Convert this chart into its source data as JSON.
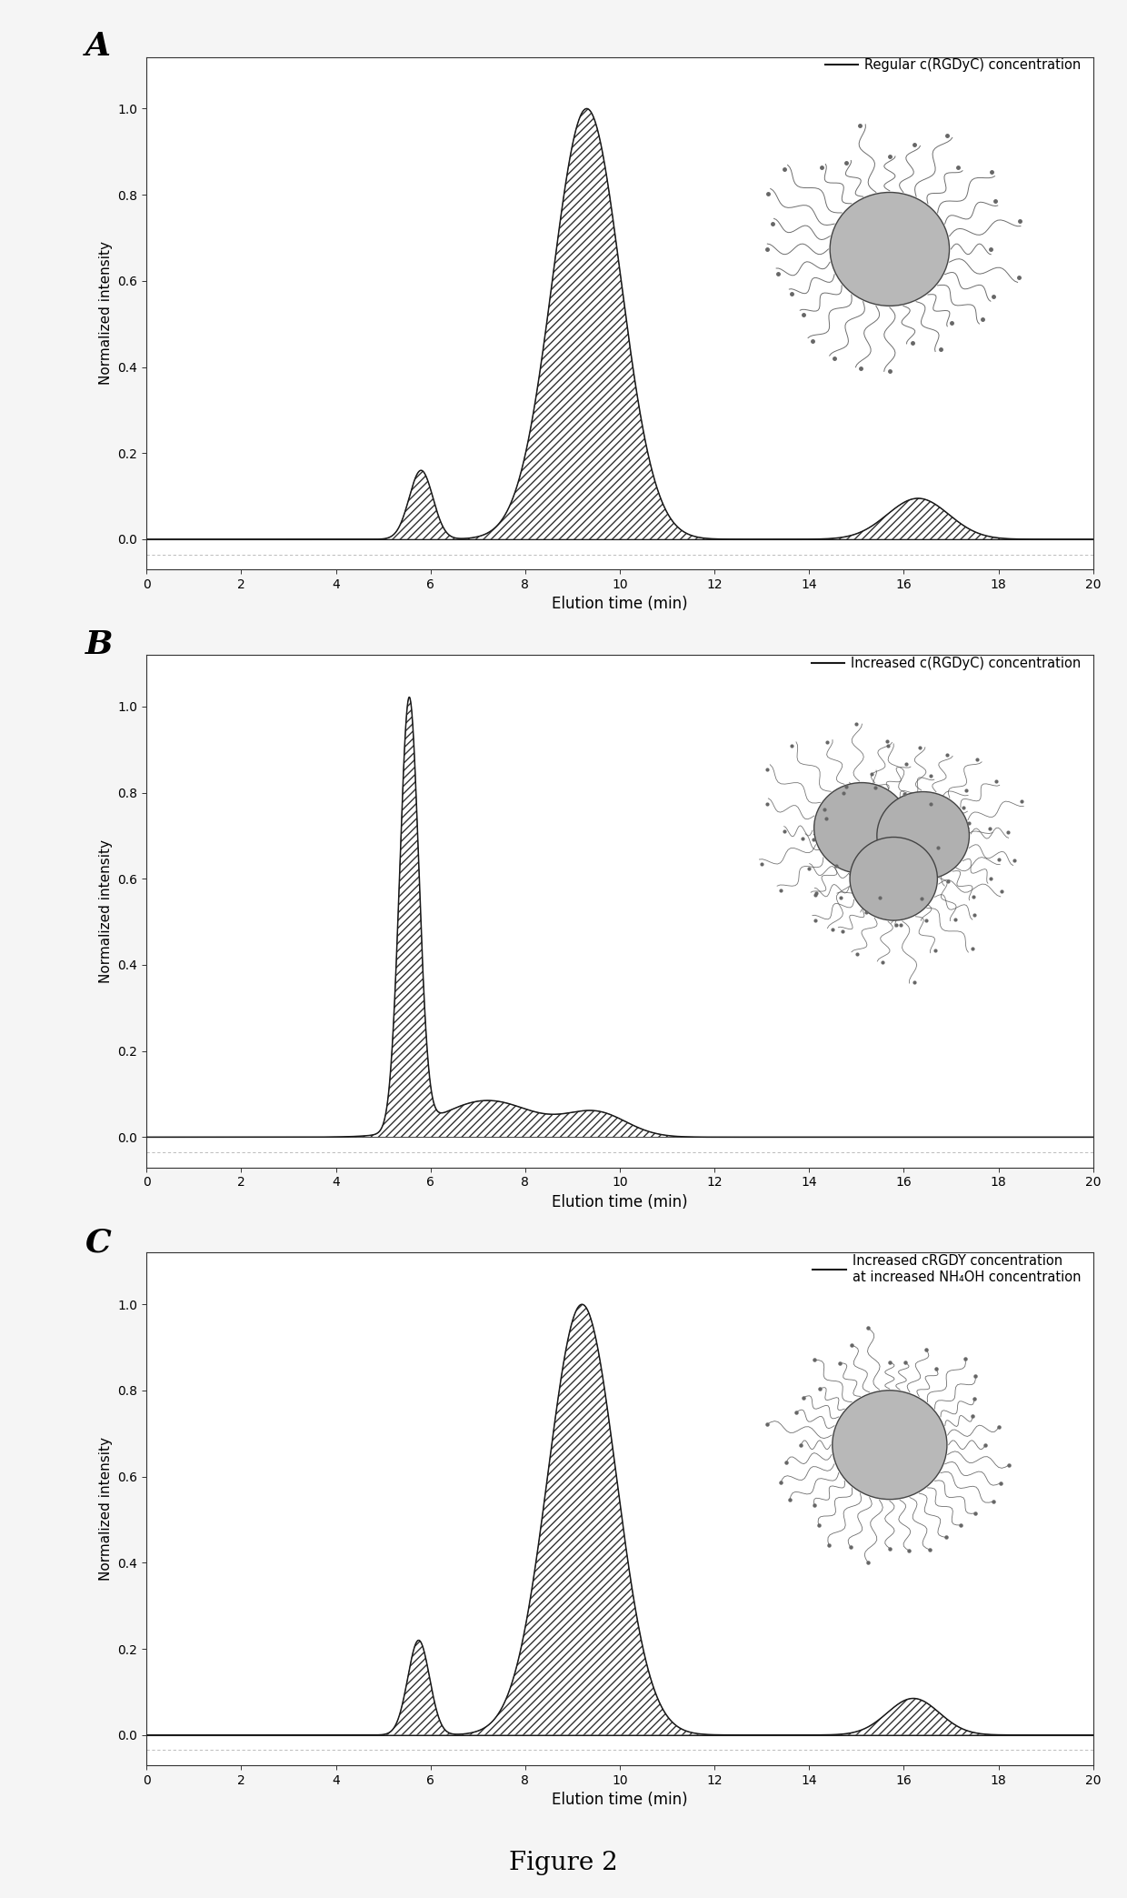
{
  "figure_title": "Figure 2",
  "panels": [
    {
      "label": "A",
      "legend_text": "Regular c(RGDyC) concentration",
      "curve_type": "A"
    },
    {
      "label": "B",
      "legend_text": "Increased c(RGDyC) concentration",
      "curve_type": "B"
    },
    {
      "label": "C",
      "legend_text": "Increased cRGDY concentration\nat increased NH₄OH concentration",
      "curve_type": "C"
    }
  ],
  "xlim": [
    0,
    20
  ],
  "ylim": [
    -0.07,
    1.12
  ],
  "yticks": [
    0.0,
    0.2,
    0.4,
    0.6,
    0.8,
    1.0
  ],
  "xticks": [
    0,
    2,
    4,
    6,
    8,
    10,
    12,
    14,
    16,
    18,
    20
  ],
  "xlabel": "Elution time (min)",
  "ylabel": "Normalized intensity",
  "line_color": "#1a1a1a",
  "fill_hatch": "////",
  "background_color": "#f5f5f5",
  "panel_bg": "#ffffff",
  "fig_width": 12.4,
  "fig_height": 20.87,
  "fig_dpi": 100
}
